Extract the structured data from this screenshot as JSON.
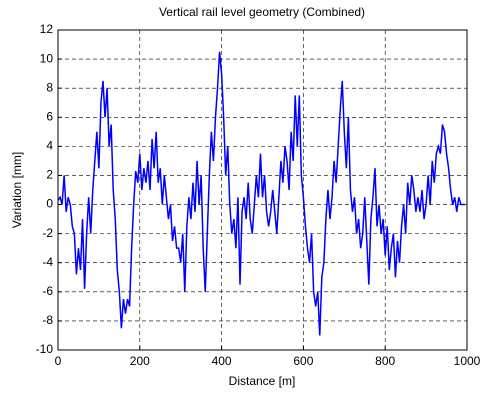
{
  "chart_data": {
    "type": "line",
    "title": "Vertical rail level geometry (Combined)",
    "x_label": "Distance [m]",
    "y_label": "Variation [mm]",
    "x": [
      0,
      5,
      10,
      15,
      20,
      25,
      30,
      35,
      40,
      45,
      50,
      55,
      60,
      65,
      70,
      75,
      80,
      85,
      90,
      95,
      100,
      105,
      110,
      115,
      120,
      125,
      130,
      135,
      140,
      145,
      150,
      155,
      160,
      165,
      170,
      175,
      180,
      185,
      190,
      195,
      200,
      205,
      210,
      215,
      220,
      225,
      230,
      235,
      240,
      245,
      250,
      255,
      260,
      265,
      270,
      275,
      280,
      285,
      290,
      295,
      300,
      305,
      310,
      315,
      320,
      325,
      330,
      335,
      340,
      345,
      350,
      355,
      360,
      365,
      370,
      375,
      380,
      385,
      390,
      395,
      400,
      405,
      410,
      415,
      420,
      425,
      430,
      435,
      440,
      445,
      450,
      455,
      460,
      465,
      470,
      475,
      480,
      485,
      490,
      495,
      500,
      505,
      510,
      515,
      520,
      525,
      530,
      535,
      540,
      545,
      550,
      555,
      560,
      565,
      570,
      575,
      580,
      585,
      590,
      595,
      600,
      605,
      610,
      615,
      620,
      625,
      630,
      635,
      640,
      645,
      650,
      655,
      660,
      665,
      670,
      675,
      680,
      685,
      690,
      695,
      700,
      705,
      710,
      715,
      720,
      725,
      730,
      735,
      740,
      745,
      750,
      755,
      760,
      765,
      770,
      775,
      780,
      785,
      790,
      795,
      800,
      805,
      810,
      815,
      820,
      825,
      830,
      835,
      840,
      845,
      850,
      855,
      860,
      865,
      870,
      875,
      880,
      885,
      890,
      895,
      900,
      905,
      910,
      915,
      920,
      925,
      930,
      935,
      940,
      945,
      950,
      955,
      960,
      965,
      970,
      975,
      980,
      985,
      990,
      995
    ],
    "series": [
      {
        "color": "#0000ff",
        "values": [
          0.3,
          0.5,
          0,
          2,
          -0.5,
          0.5,
          0,
          -1.5,
          -2,
          -4.8,
          -3,
          -4.5,
          -1,
          -5.8,
          -2,
          0.5,
          -2,
          1,
          3,
          5,
          2.5,
          7,
          8.5,
          6,
          8,
          4,
          5.5,
          1,
          -1,
          -4.5,
          -6,
          -8.5,
          -6.5,
          -7.5,
          -6.5,
          -7,
          -3,
          0,
          2.3,
          1.5,
          3.5,
          1,
          2.5,
          1.5,
          3,
          1,
          4.5,
          2.5,
          5,
          1.5,
          2.5,
          0,
          2,
          0.5,
          -1,
          0,
          -2.5,
          -1.5,
          -3,
          -3,
          -4,
          -2,
          -6,
          -1.5,
          0.5,
          -1,
          1.5,
          -0.5,
          3,
          0,
          2,
          -3,
          -6,
          -2,
          2,
          5,
          3,
          6,
          8,
          10.5,
          9,
          6,
          2,
          4,
          0,
          -2,
          -1,
          -3,
          0.5,
          -5.5,
          -0.5,
          0.5,
          -1,
          1.5,
          -1,
          -2,
          0,
          2,
          0.5,
          3.5,
          0.5,
          2,
          -0.5,
          -1.5,
          -0.5,
          1,
          -0.5,
          -2,
          0.5,
          3,
          1.5,
          4,
          3,
          1,
          5,
          3,
          7.5,
          4,
          7.5,
          2,
          0.5,
          -1.5,
          -3,
          -4,
          -2,
          -6,
          -7,
          -6,
          -9,
          -5,
          -4,
          -1,
          1,
          -1,
          0.5,
          3,
          1.5,
          4,
          6.5,
          8.5,
          5,
          2.5,
          6,
          1,
          -0.5,
          0.5,
          -2,
          -1,
          -3,
          -2,
          0.5,
          -2.5,
          -5.5,
          -1,
          0.5,
          2.5,
          -1.5,
          0,
          -2,
          -1,
          -3.5,
          -1.5,
          -4.5,
          -3,
          -2,
          -5,
          -2.5,
          -4,
          -1.5,
          0,
          -2,
          1.5,
          0,
          2,
          1,
          -0.5,
          0.5,
          -0.5,
          1,
          -1,
          0,
          2,
          0,
          3,
          1.5,
          3.5,
          4,
          3.5,
          5.5,
          5,
          3.5,
          2.5,
          1,
          0,
          0.5,
          -0.5,
          0.5,
          0,
          0,
          0
        ]
      }
    ],
    "xlim": [
      0,
      1000
    ],
    "xticks": [
      0,
      200,
      400,
      600,
      800,
      1000
    ],
    "ylim": [
      -10,
      12
    ],
    "yticks": [
      -10,
      -8,
      -6,
      -4,
      -2,
      0,
      2,
      4,
      6,
      8,
      10,
      12
    ],
    "grid": true
  }
}
